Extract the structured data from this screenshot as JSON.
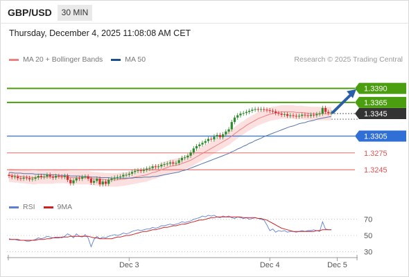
{
  "header": {
    "pair": "GBP/USD",
    "timeframe": "30 MIN",
    "datetime": "Thursday, December 4, 2025 11:08:08 AM CET"
  },
  "legend": {
    "ma20": "MA 20 + Bollinger Bands",
    "ma50": "MA 50",
    "credit": "Research © 2025 Trading Central"
  },
  "rsi_legend": {
    "rsi": "RSI",
    "ma": "9MA"
  },
  "colors": {
    "resistance": "#4a9e0f",
    "current": "#333333",
    "pivot": "#2f6fd6",
    "support": "#e05050",
    "ma20": "#f08080",
    "ma50": "#5577aa",
    "band_fill": "#fbdada",
    "candle_up": "#2e8b2e",
    "candle_down": "#d32f2f",
    "rsi": "#5b7fd6",
    "rsi_ma": "#d02020",
    "arrow": "#2a5fa8"
  },
  "chart_data": [
    {
      "type": "line",
      "name": "price",
      "y_range": [
        1.3202,
        1.3424
      ],
      "x_ticks": [
        {
          "label": "Dec 3",
          "index": 41
        },
        {
          "label": "Dec 4",
          "index": 89
        },
        {
          "label": "Dec 5",
          "index": 112
        }
      ],
      "levels": [
        {
          "label": "1.3390",
          "value": 1.339,
          "kind": "resistance"
        },
        {
          "label": "1.3365",
          "value": 1.3365,
          "kind": "resistance"
        },
        {
          "label": "1.3345",
          "value": 1.3345,
          "kind": "current"
        },
        {
          "label": "1.3305",
          "value": 1.3305,
          "kind": "pivot"
        },
        {
          "label": "1.3275",
          "value": 1.3275,
          "kind": "support"
        },
        {
          "label": "1.3245",
          "value": 1.3245,
          "kind": "support"
        }
      ],
      "close": [
        1.3234,
        1.3232,
        1.3233,
        1.323,
        1.3229,
        1.3231,
        1.323,
        1.3228,
        1.3229,
        1.3231,
        1.3234,
        1.3232,
        1.3233,
        1.3236,
        1.3233,
        1.3231,
        1.3234,
        1.3233,
        1.3232,
        1.3234,
        1.3227,
        1.3221,
        1.3226,
        1.323,
        1.3229,
        1.3232,
        1.3233,
        1.3229,
        1.3222,
        1.3225,
        1.3229,
        1.3219,
        1.3224,
        1.322,
        1.3227,
        1.3229,
        1.3231,
        1.3232,
        1.3233,
        1.3236,
        1.3236,
        1.3238,
        1.3241,
        1.3243,
        1.3244,
        1.3243,
        1.3245,
        1.3247,
        1.3248,
        1.3251,
        1.325,
        1.3251,
        1.3254,
        1.3255,
        1.3256,
        1.3258,
        1.3256,
        1.3257,
        1.3262,
        1.3266,
        1.3267,
        1.327,
        1.3276,
        1.3283,
        1.3287,
        1.329,
        1.3293,
        1.3296,
        1.33,
        1.3299,
        1.3304,
        1.3307,
        1.3303,
        1.3308,
        1.3313,
        1.3317,
        1.333,
        1.3338,
        1.3342,
        1.3345,
        1.3346,
        1.3348,
        1.335,
        1.3352,
        1.3353,
        1.3352,
        1.3353,
        1.3352,
        1.3351,
        1.335,
        1.3349,
        1.3346,
        1.3345,
        1.3343,
        1.3344,
        1.3341,
        1.3342,
        1.3341,
        1.334,
        1.3341,
        1.3343,
        1.3342,
        1.3341,
        1.3343,
        1.3342,
        1.3344,
        1.3345,
        1.3355,
        1.3348,
        1.3346,
        1.3347
      ],
      "ma20": [
        1.3235,
        1.3235,
        1.3234,
        1.3234,
        1.3233,
        1.3233,
        1.3232,
        1.3232,
        1.3231,
        1.3231,
        1.3232,
        1.3232,
        1.3232,
        1.3232,
        1.3232,
        1.3232,
        1.3233,
        1.3233,
        1.3233,
        1.3233,
        1.3232,
        1.3231,
        1.3231,
        1.3231,
        1.3231,
        1.3231,
        1.3231,
        1.3231,
        1.323,
        1.3229,
        1.3229,
        1.3228,
        1.3228,
        1.3227,
        1.3227,
        1.3227,
        1.3227,
        1.3227,
        1.3228,
        1.3228,
        1.3229,
        1.323,
        1.3231,
        1.3232,
        1.3233,
        1.3234,
        1.3235,
        1.3236,
        1.3238,
        1.324,
        1.3241,
        1.3243,
        1.3245,
        1.3247,
        1.3249,
        1.3251,
        1.3252,
        1.3253,
        1.3254,
        1.3256,
        1.3258,
        1.326,
        1.3262,
        1.3265,
        1.3268,
        1.3271,
        1.3274,
        1.3277,
        1.328,
        1.3283,
        1.3286,
        1.3289,
        1.3292,
        1.3295,
        1.3298,
        1.3301,
        1.3305,
        1.3309,
        1.3313,
        1.3317,
        1.332,
        1.3324,
        1.3327,
        1.333,
        1.3333,
        1.3336,
        1.3338,
        1.334,
        1.3342,
        1.3344,
        1.3345,
        1.3346,
        1.3347,
        1.3348,
        1.3348,
        1.3348,
        1.3348,
        1.3348,
        1.3347,
        1.3347,
        1.3347,
        1.3346,
        1.3346,
        1.3345,
        1.3345,
        1.3345,
        1.3345,
        1.3345,
        1.3345,
        1.3345,
        1.3345
      ],
      "ma50": [
        1.324,
        1.324,
        1.3239,
        1.3239,
        1.3239,
        1.3238,
        1.3238,
        1.3238,
        1.3238,
        1.3237,
        1.3237,
        1.3237,
        1.3237,
        1.3236,
        1.3236,
        1.3236,
        1.3236,
        1.3235,
        1.3235,
        1.3235,
        1.3235,
        1.3234,
        1.3234,
        1.3234,
        1.3234,
        1.3233,
        1.3233,
        1.3233,
        1.3232,
        1.3232,
        1.3232,
        1.3231,
        1.3231,
        1.3231,
        1.3231,
        1.323,
        1.323,
        1.323,
        1.323,
        1.323,
        1.323,
        1.323,
        1.323,
        1.3231,
        1.3231,
        1.3231,
        1.3232,
        1.3232,
        1.3232,
        1.3233,
        1.3233,
        1.3234,
        1.3235,
        1.3236,
        1.3237,
        1.3238,
        1.3239,
        1.324,
        1.3241,
        1.3243,
        1.3244,
        1.3246,
        1.3248,
        1.325,
        1.3252,
        1.3254,
        1.3256,
        1.3258,
        1.326,
        1.3262,
        1.3264,
        1.3266,
        1.3268,
        1.327,
        1.3272,
        1.3274,
        1.3277,
        1.3279,
        1.3282,
        1.3284,
        1.3287,
        1.3289,
        1.3292,
        1.3294,
        1.3297,
        1.3299,
        1.3301,
        1.3304,
        1.3306,
        1.3308,
        1.331,
        1.3312,
        1.3314,
        1.3316,
        1.3318,
        1.332,
        1.3322,
        1.3323,
        1.3325,
        1.3327,
        1.3328,
        1.3329,
        1.3331,
        1.3332,
        1.3333,
        1.3335,
        1.3336,
        1.3337,
        1.3338,
        1.3339,
        1.334
      ],
      "band_width": 0.0012
    },
    {
      "type": "line",
      "name": "rsi",
      "y_range": [
        20,
        80
      ],
      "y_ticks": [
        30,
        50,
        70
      ],
      "rsi": [
        46,
        45,
        45,
        44,
        44,
        44,
        43,
        43,
        44,
        45,
        47,
        46,
        47,
        49,
        48,
        47,
        48,
        48,
        47,
        49,
        52,
        50,
        47,
        52,
        49,
        48,
        51,
        47,
        36,
        45,
        49,
        46,
        48,
        47,
        49,
        50,
        51,
        50,
        51,
        53,
        52,
        53,
        55,
        56,
        57,
        56,
        57,
        58,
        58,
        60,
        59,
        60,
        62,
        62,
        63,
        64,
        63,
        64,
        65,
        67,
        66,
        67,
        68,
        70,
        71,
        72,
        74,
        73,
        75,
        74,
        75,
        73,
        72,
        74,
        73,
        74,
        72,
        71,
        73,
        72,
        71,
        72,
        70,
        71,
        72,
        71,
        70,
        69,
        63,
        56,
        58,
        54,
        56,
        55,
        56,
        54,
        55,
        55,
        54,
        55,
        56,
        55,
        56,
        56,
        57,
        56,
        55,
        67,
        58,
        57,
        57
      ],
      "ma9": [
        45,
        45,
        45,
        45,
        44,
        44,
        44,
        44,
        44,
        44,
        45,
        45,
        45,
        46,
        46,
        47,
        47,
        47,
        48,
        48,
        48,
        49,
        49,
        49,
        49,
        49,
        49,
        49,
        48,
        47,
        47,
        46,
        46,
        46,
        46,
        46,
        47,
        48,
        48,
        49,
        50,
        50,
        51,
        52,
        53,
        54,
        55,
        55,
        56,
        57,
        57,
        58,
        59,
        60,
        60,
        61,
        62,
        62,
        63,
        64,
        64,
        65,
        66,
        67,
        68,
        69,
        69,
        70,
        71,
        72,
        72,
        73,
        73,
        73,
        73,
        73,
        73,
        73,
        73,
        73,
        72,
        72,
        72,
        72,
        72,
        71,
        71,
        70,
        69,
        67,
        65,
        63,
        61,
        59,
        58,
        57,
        56,
        55,
        55,
        55,
        55,
        55,
        55,
        55,
        55,
        56,
        56,
        57,
        57,
        57,
        57
      ]
    }
  ]
}
